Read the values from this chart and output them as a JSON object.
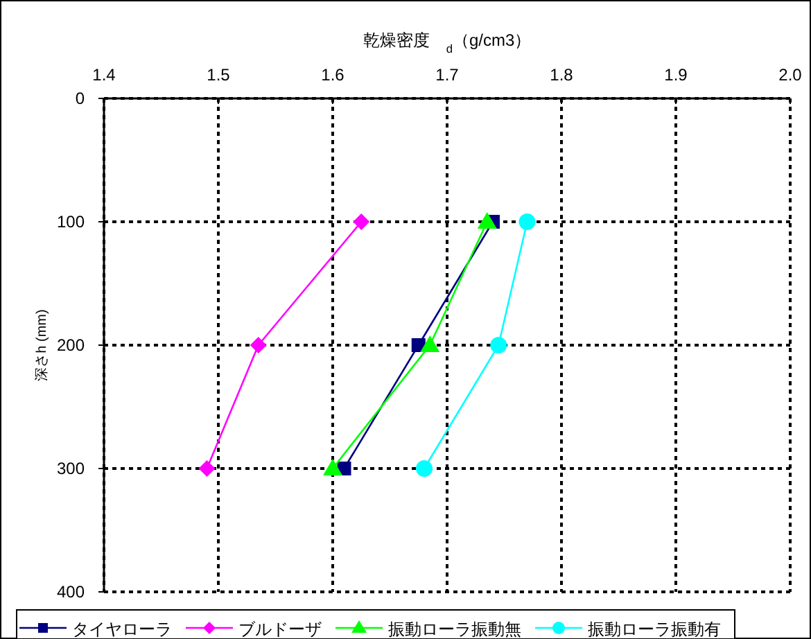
{
  "chart_data": {
    "type": "line",
    "xlabel": "乾燥密度　$_{d}$（g/cm3）",
    "ylabel": "深さh (mm)",
    "xlim": [
      1.4,
      2.0
    ],
    "xticks": [
      {
        "value": 1.4,
        "label": "1.4"
      },
      {
        "value": 1.5,
        "label": "1.5"
      },
      {
        "value": 1.6,
        "label": "1.6"
      },
      {
        "value": 1.7,
        "label": "1.7"
      },
      {
        "value": 1.8,
        "label": "1.8"
      },
      {
        "value": 1.9,
        "label": "1.9"
      },
      {
        "value": 2.0,
        "label": "2.0"
      }
    ],
    "ylim": [
      400,
      0
    ],
    "yticks": [
      0,
      100,
      200,
      300,
      400
    ],
    "grid": true,
    "legend": "bottom",
    "line_style": "solid",
    "series": [
      {
        "name": "タイヤローラ",
        "color": "#000080",
        "marker": "square",
        "x": [
          1.74,
          1.675,
          1.61
        ],
        "values": [
          100,
          200,
          300
        ]
      },
      {
        "name": "ブルドーザ",
        "color": "#ff00ff",
        "marker": "diamond",
        "x": [
          1.625,
          1.535,
          1.49
        ],
        "values": [
          100,
          200,
          300
        ]
      },
      {
        "name": "振動ローラ振動無",
        "color": "#00ff00",
        "marker": "triangle",
        "x": [
          1.735,
          1.685,
          1.6
        ],
        "values": [
          100,
          200,
          300
        ]
      },
      {
        "name": "振動ローラ振動有",
        "color": "#00ffff",
        "marker": "circle",
        "x": [
          1.77,
          1.745,
          1.68
        ],
        "values": [
          100,
          200,
          300
        ]
      }
    ]
  }
}
